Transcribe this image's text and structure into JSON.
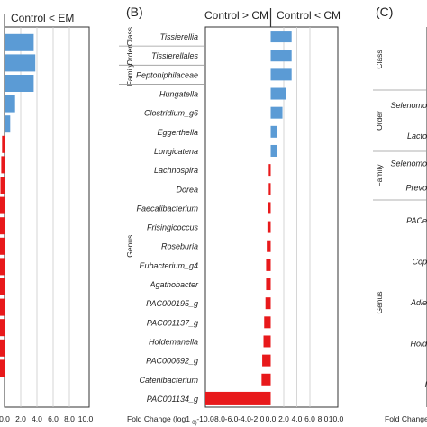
{
  "chart_data": [
    {
      "type": "bar",
      "panel_label": "",
      "header_left": "",
      "header_right": "Control < EM",
      "xlabel": "",
      "xlim": [
        -10,
        10
      ],
      "xticks": [
        "0.0",
        "2.0",
        "4.0",
        "6.0",
        "8.0",
        "10.0"
      ],
      "values": [
        3.6,
        3.8,
        3.6,
        1.3,
        0.7,
        -0.3,
        -0.4,
        -0.5,
        -0.6,
        -0.7,
        -0.8,
        -0.9,
        -1.0,
        -1.1,
        -1.2,
        -1.3,
        -1.4
      ]
    },
    {
      "type": "bar",
      "panel_label": "(B)",
      "header_left": "Control > CM",
      "header_right": "Control < CM",
      "xlabel": "Fold Change (log10)",
      "xlim": [
        -10,
        10
      ],
      "xticks": [
        "-10.0",
        "-8.0",
        "-6.0",
        "-4.0",
        "-2.0",
        "0.0",
        "2.0",
        "4.0",
        "6.0",
        "8.0",
        "10.0"
      ],
      "groups": [
        {
          "name": "Class",
          "members": [
            "Tissierellia"
          ]
        },
        {
          "name": "Order",
          "members": [
            "Tissierellales"
          ]
        },
        {
          "name": "Family",
          "members": [
            "Peptoniphilaceae"
          ]
        },
        {
          "name": "Genus",
          "members": [
            "Hungatella",
            "Clostridium_g6",
            "Eggerthella",
            "Longicatena",
            "Lachnospira",
            "Dorea",
            "Faecalibacterium",
            "Frisingicoccus",
            "Roseburia",
            "Eubacterium_g4",
            "Agathobacter",
            "PAC000195_g",
            "PAC001137_g",
            "Holdemanella",
            "PAC000692_g",
            "Catenibacterium",
            "PAC001134_g"
          ]
        }
      ],
      "categories": [
        "Tissierellia",
        "Tissierellales",
        "Peptoniphilaceae",
        "Hungatella",
        "Clostridium_g6",
        "Eggerthella",
        "Longicatena",
        "Lachnospira",
        "Dorea",
        "Faecalibacterium",
        "Frisingicoccus",
        "Roseburia",
        "Eubacterium_g4",
        "Agathobacter",
        "PAC000195_g",
        "PAC001137_g",
        "Holdemanella",
        "PAC000692_g",
        "Catenibacterium",
        "PAC001134_g"
      ],
      "values": [
        3.2,
        3.2,
        3.2,
        2.3,
        1.8,
        1.0,
        1.0,
        -0.3,
        -0.3,
        -0.4,
        -0.5,
        -0.6,
        -0.7,
        -0.7,
        -0.8,
        -1.0,
        -1.1,
        -1.3,
        -1.4,
        -10.0
      ]
    },
    {
      "type": "bar",
      "panel_label": "(C)",
      "xlabel": "Fold Change",
      "groups": [
        {
          "name": "Class",
          "members": []
        },
        {
          "name": "Order",
          "members": [
            "Selenomo",
            "Lacto"
          ]
        },
        {
          "name": "Family",
          "members": [
            "Selenomo",
            "Prevo"
          ]
        },
        {
          "name": "Genus",
          "members": [
            "PACe",
            "Cop",
            "Adle",
            "Hold",
            "I"
          ]
        }
      ]
    }
  ],
  "colors": {
    "positive": "#5b9bd5",
    "negative": "#e8191b",
    "grid": "#cccccc",
    "frame": "#333333"
  }
}
